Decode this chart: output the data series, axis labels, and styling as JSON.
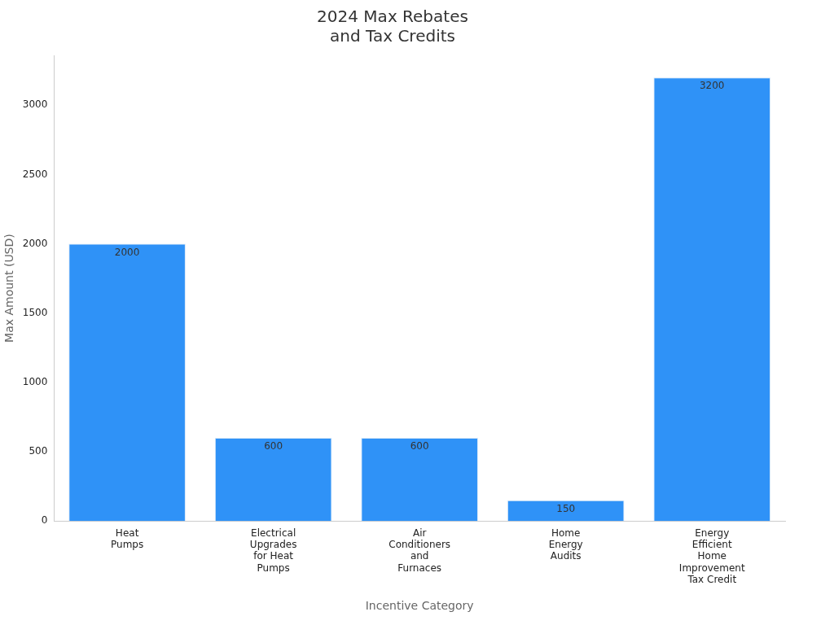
{
  "chart_data": {
    "type": "bar",
    "title": "2024 Max Rebates\nand Tax Credits",
    "xlabel": "Incentive Category",
    "ylabel": "Max Amount (USD)",
    "categories": [
      "Heat\nPumps",
      "Electrical\nUpgrades\nfor Heat\nPumps",
      "Air\nConditioners\nand\nFurnaces",
      "Home\nEnergy\nAudits",
      "Energy\nEfficient\nHome\nImprovement\nTax Credit"
    ],
    "values": [
      2000,
      600,
      600,
      150,
      3200
    ],
    "color": "#2f92f7",
    "ylim": [
      0,
      3360
    ],
    "yticks": [
      0,
      500,
      1000,
      1500,
      2000,
      2500,
      3000
    ],
    "grid": false,
    "legend": false,
    "data_labels": true
  }
}
